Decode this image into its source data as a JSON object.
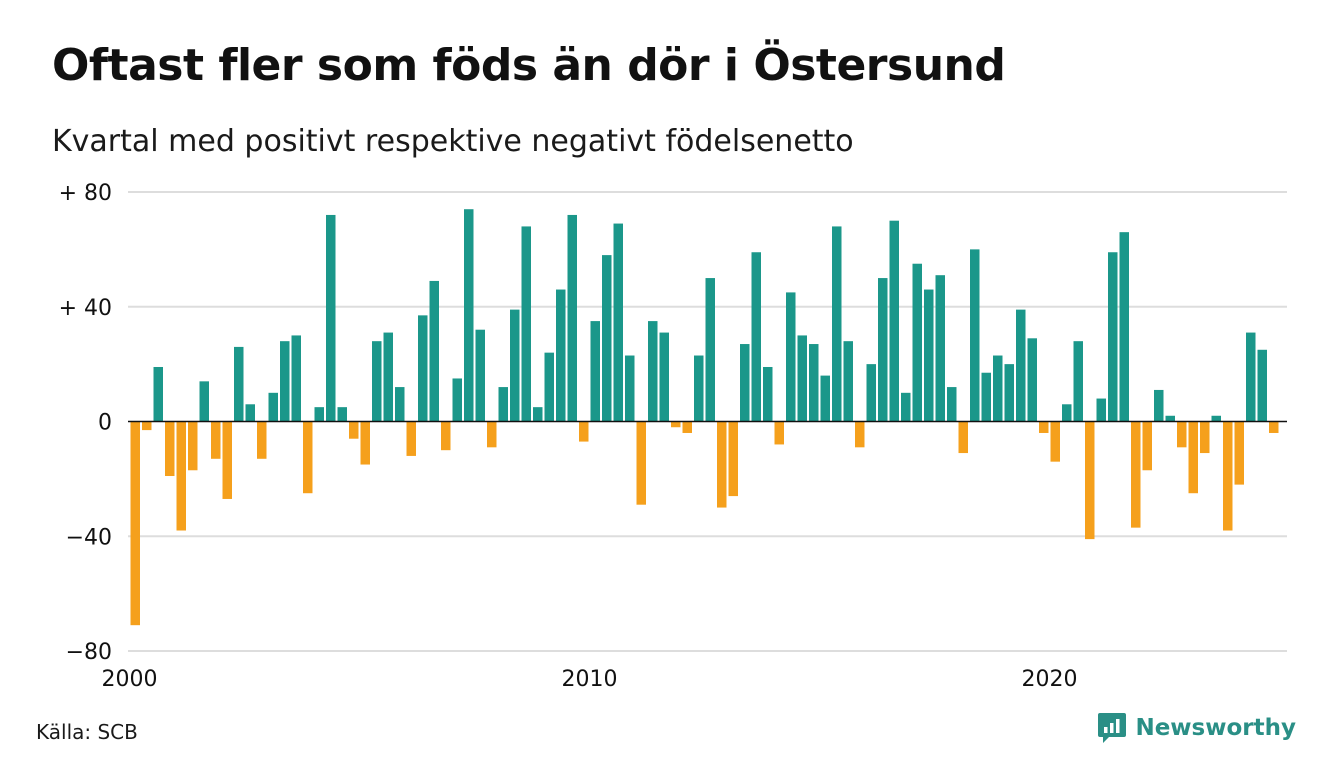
{
  "title": "Oftast fler som föds än dör i Östersund",
  "subtitle": "Kvartal med positivt respektive negativt födelsenetto",
  "source": "Källa: SCB",
  "brand": {
    "name": "Newsworthy",
    "icon": "newsworthy-chart-bubble-icon"
  },
  "colors": {
    "positive": "#1b978a",
    "negative": "#f5a01c",
    "grid": "#dddddd",
    "axis": "#111111",
    "brand": "#2a8f86"
  },
  "chart_data": {
    "type": "bar",
    "title": "Oftast fler som föds än dör i Östersund",
    "subtitle": "Kvartal med positivt respektive negativt födelsenetto",
    "xlabel": "",
    "ylabel": "",
    "ylim": [
      -80,
      80
    ],
    "y_ticks": [
      {
        "value": 80,
        "label": "+ 80"
      },
      {
        "value": 40,
        "label": "+ 40"
      },
      {
        "value": 0,
        "label": "0"
      },
      {
        "value": -40,
        "label": "−40"
      },
      {
        "value": -80,
        "label": "−80"
      }
    ],
    "x_ticks": [
      {
        "value": 2000,
        "label": "2000"
      },
      {
        "value": 2010,
        "label": "2010"
      },
      {
        "value": 2020,
        "label": "2020"
      }
    ],
    "grid": true,
    "legend": "none",
    "start_year": 2000,
    "quarters_per_year": 4,
    "values": [
      -71,
      -3,
      19,
      -19,
      -38,
      -17,
      14,
      -13,
      -27,
      26,
      6,
      -13,
      10,
      28,
      30,
      -25,
      5,
      72,
      5,
      -6,
      -15,
      28,
      31,
      12,
      -12,
      37,
      49,
      -10,
      15,
      74,
      32,
      -9,
      12,
      39,
      68,
      5,
      24,
      46,
      72,
      -7,
      35,
      58,
      69,
      23,
      -29,
      35,
      31,
      -2,
      -4,
      23,
      50,
      -30,
      -26,
      27,
      59,
      19,
      -8,
      45,
      30,
      27,
      16,
      68,
      28,
      -9,
      20,
      50,
      70,
      10,
      55,
      46,
      51,
      12,
      -11,
      60,
      17,
      23,
      20,
      39,
      29,
      -4,
      -14,
      6,
      28,
      -41,
      8,
      59,
      66,
      -37,
      -17,
      11,
      2,
      -9,
      -25,
      -11,
      2,
      -38,
      -22,
      31,
      25,
      -4
    ]
  }
}
